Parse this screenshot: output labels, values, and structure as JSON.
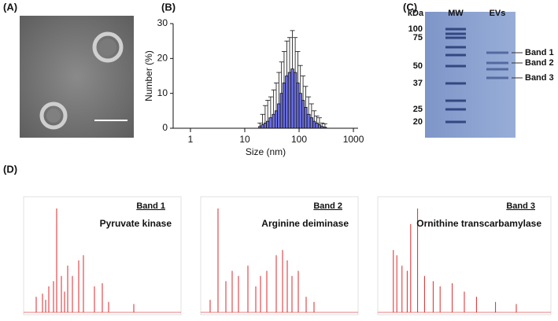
{
  "panel_labels": [
    "(A)",
    "(B)",
    "(C)",
    "(D)"
  ],
  "chart_data": {
    "type": "histogram",
    "xlabel": "Size (nm)",
    "ylabel": "Number (%)",
    "color": "#6a6ee0",
    "bins": [
      18,
      20,
      22.5,
      25,
      28,
      32,
      36,
      40,
      45,
      50,
      56,
      63,
      71,
      80,
      90,
      100,
      112,
      125,
      140,
      160,
      180,
      200,
      225,
      250,
      280,
      320
    ],
    "values": [
      0.5,
      1,
      1.5,
      2,
      3,
      4,
      5,
      7,
      10,
      13,
      15,
      16,
      17,
      16,
      13,
      10,
      8,
      6,
      4,
      3,
      2,
      1.5,
      1,
      0.5,
      0.3
    ],
    "errors": [
      1,
      3,
      5,
      6,
      6,
      7,
      8,
      9,
      9,
      9,
      10,
      10,
      11,
      10,
      9,
      8,
      7,
      6,
      5,
      4,
      3,
      2,
      2,
      1,
      1
    ],
    "xlim": [
      0.48,
      1220
    ],
    "xticks": [
      1,
      10,
      100,
      1000
    ],
    "log_x": true,
    "ylim": [
      0,
      30
    ],
    "yticks": [
      0,
      10,
      20,
      30
    ]
  },
  "gel": {
    "unit": "kDa",
    "lanes": [
      "MW",
      "EVs"
    ],
    "markers": [
      "100",
      "75",
      "50",
      "37",
      "25",
      "20"
    ],
    "bands": [
      {
        "label": "Band 1",
        "color": "#e8262a"
      },
      {
        "label": "Band 2",
        "color": "#2b3de0"
      },
      {
        "label": "Band 3",
        "color": "#1f8a2a"
      }
    ]
  },
  "spectra": [
    {
      "band": "Band 1",
      "band_color": "#e8262a",
      "protein": "Pyruvate kinase",
      "x": [
        8,
        12,
        14,
        16,
        19,
        21,
        24,
        26,
        28,
        31,
        35,
        38,
        45,
        50,
        54,
        70
      ],
      "values": [
        15,
        18,
        12,
        25,
        30,
        100,
        35,
        20,
        45,
        35,
        50,
        55,
        25,
        28,
        10,
        8
      ]
    },
    {
      "band": "Band 2",
      "band_color": "#2b3de0",
      "protein": "Arginine deiminase",
      "x": [
        6,
        11,
        16,
        20,
        24,
        30,
        35,
        38,
        42,
        48,
        52,
        55,
        58,
        62,
        67,
        72
      ],
      "values": [
        12,
        100,
        30,
        40,
        35,
        45,
        25,
        35,
        40,
        55,
        60,
        50,
        35,
        40,
        15,
        10
      ]
    },
    {
      "band": "Band 3",
      "band_color": "#1f8a2a",
      "protein": "Ornithine transcarbamylase",
      "x": [
        9,
        11,
        14,
        17,
        19,
        23,
        27,
        32,
        36,
        43,
        50,
        57,
        68,
        80
      ],
      "values": [
        60,
        55,
        45,
        40,
        85,
        100,
        35,
        30,
        25,
        28,
        20,
        15,
        10,
        8
      ]
    }
  ]
}
